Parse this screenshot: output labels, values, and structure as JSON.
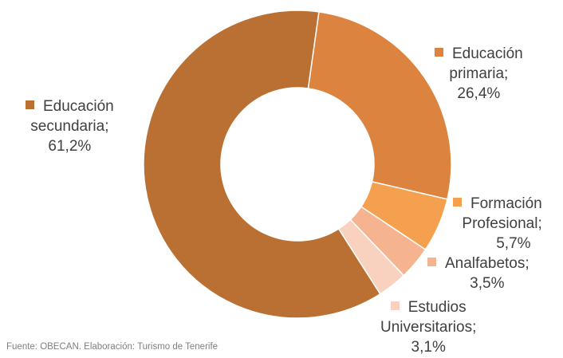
{
  "chart_data": {
    "type": "pie",
    "donut": true,
    "slices": [
      {
        "name": "Educación primaria",
        "value": 26.4,
        "label": "26,4%",
        "color": "#dc843f"
      },
      {
        "name": "Formación Profesional",
        "value": 5.7,
        "label": "5,7%",
        "color": "#f5a04f"
      },
      {
        "name": "Analfabetos",
        "value": 3.5,
        "label": "3,5%",
        "color": "#f5b48f"
      },
      {
        "name": "Estudios Universitarios",
        "value": 3.1,
        "label": "3,1%",
        "color": "#f9d2bf"
      },
      {
        "name": "Educación secundaria",
        "value": 61.2,
        "label": "61,2%",
        "color": "#bb7033"
      }
    ],
    "label_parts": {
      "primaria": [
        "Educación",
        "primaria;",
        "26,4%"
      ],
      "fp": [
        "Formación",
        "Profesional;",
        "5,7%"
      ],
      "analf": [
        "Analfabetos;",
        "3,5%"
      ],
      "univ": [
        "Estudios",
        "Universitarios;",
        "3,1%"
      ],
      "secundaria": [
        "Educación",
        "secundaria;",
        "61,2%"
      ]
    }
  },
  "source": "Fuente: OBECAN. Elaboración: Turismo de Tenerife"
}
